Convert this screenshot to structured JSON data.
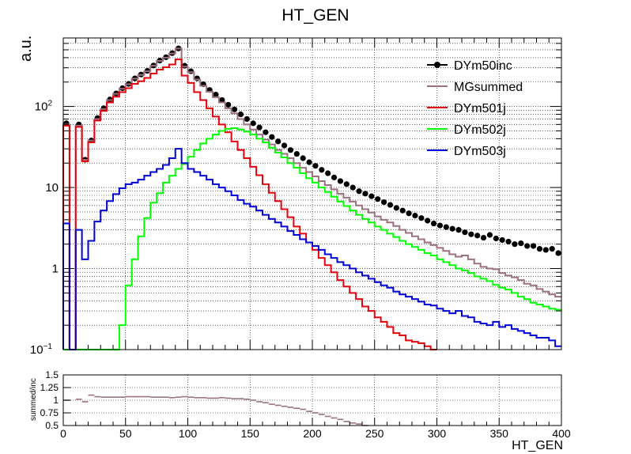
{
  "chart_data": [
    {
      "type": "line",
      "title": "HT_GEN",
      "ylabel": "a.u.",
      "xlabel": "",
      "yscale": "log",
      "xlim": [
        0,
        400
      ],
      "ylim": [
        0.1,
        700
      ],
      "grid": true,
      "legend_position": "top-right",
      "x_ticks": [
        "0",
        "50",
        "100",
        "150",
        "200",
        "250",
        "300",
        "350",
        "400"
      ],
      "y_ticks": [
        {
          "label": "10",
          "sup": "−1",
          "value": 0.1
        },
        {
          "label": "1",
          "value": 1
        },
        {
          "label": "10",
          "value": 10
        },
        {
          "label": "10",
          "sup": "2",
          "value": 100
        }
      ],
      "bin_width": 5,
      "series": [
        {
          "name": "DYm50inc",
          "style": "markers",
          "color": "#000000",
          "x": [
            2.5,
            12.5,
            17.5,
            22.5,
            27.5,
            32.5,
            37.5,
            42.5,
            47.5,
            52.5,
            57.5,
            62.5,
            67.5,
            72.5,
            77.5,
            82.5,
            87.5,
            92.5,
            97.5,
            102.5,
            107.5,
            112.5,
            117.5,
            122.5,
            127.5,
            132.5,
            137.5,
            142.5,
            147.5,
            152.5,
            157.5,
            162.5,
            167.5,
            172.5,
            177.5,
            182.5,
            187.5,
            192.5,
            197.5,
            202.5,
            207.5,
            212.5,
            217.5,
            222.5,
            227.5,
            232.5,
            237.5,
            242.5,
            247.5,
            252.5,
            257.5,
            262.5,
            267.5,
            272.5,
            277.5,
            282.5,
            287.5,
            292.5,
            297.5,
            302.5,
            307.5,
            312.5,
            317.5,
            322.5,
            327.5,
            332.5,
            337.5,
            342.5,
            347.5,
            352.5,
            357.5,
            362.5,
            367.5,
            372.5,
            377.5,
            382.5,
            387.5,
            392.5,
            397.5
          ],
          "values": [
            62,
            60,
            22,
            38,
            72,
            95,
            122,
            145,
            168,
            190,
            222,
            248,
            275,
            320,
            368,
            405,
            455,
            520,
            318,
            272,
            222,
            188,
            160,
            140,
            120,
            105,
            92,
            80,
            70,
            62,
            55,
            48,
            42,
            37,
            33,
            29,
            26,
            23,
            20.5,
            18.5,
            16.5,
            15,
            13.3,
            12,
            11,
            10,
            9,
            8.4,
            7.8,
            7.2,
            6.6,
            6.1,
            5.6,
            5.2,
            4.8,
            4.5,
            4.2,
            3.9,
            3.6,
            3.4,
            3.25,
            3.1,
            3.0,
            2.8,
            2.65,
            2.55,
            2.4,
            2.6,
            2.35,
            2.25,
            2.15,
            2.0,
            2.05,
            1.9,
            1.9,
            1.75,
            1.7,
            1.75,
            1.55
          ]
        },
        {
          "name": "MGsummed",
          "style": "step",
          "color": "#9b7080",
          "edges": [
            0,
            5,
            10,
            15,
            20,
            25,
            30,
            35,
            40,
            45,
            50,
            55,
            60,
            65,
            70,
            75,
            80,
            85,
            90,
            95,
            100,
            105,
            110,
            115,
            120,
            125,
            130,
            135,
            140,
            145,
            150,
            155,
            160,
            165,
            170,
            175,
            180,
            185,
            190,
            195,
            200,
            205,
            210,
            215,
            220,
            225,
            230,
            235,
            240,
            245,
            250,
            255,
            260,
            265,
            270,
            275,
            280,
            285,
            290,
            295,
            300,
            305,
            310,
            315,
            320,
            325,
            330,
            335,
            340,
            345,
            350,
            355,
            360,
            365,
            370,
            375,
            380,
            385,
            390,
            395,
            400
          ],
          "values": [
            60,
            0.1,
            58,
            22,
            38,
            70,
            93,
            120,
            143,
            165,
            188,
            220,
            245,
            272,
            318,
            365,
            400,
            450,
            518,
            310,
            265,
            215,
            180,
            152,
            130,
            112,
            95,
            82,
            70,
            60,
            52,
            45,
            39,
            34,
            29,
            26,
            23,
            20,
            17.5,
            15.5,
            13.7,
            12,
            10.7,
            9.5,
            8.4,
            7.5,
            6.7,
            6.0,
            5.4,
            4.9,
            4.4,
            4.0,
            3.7,
            3.35,
            3.0,
            2.75,
            2.5,
            2.3,
            2.1,
            1.95,
            1.8,
            1.65,
            1.5,
            1.4,
            1.45,
            1.3,
            1.15,
            1.05,
            1.0,
            0.98,
            0.88,
            0.82,
            0.78,
            0.72,
            0.65,
            0.62,
            0.56,
            0.52,
            0.48,
            0.45
          ]
        },
        {
          "name": "DYm501j",
          "style": "step",
          "color": "#e8000b",
          "edges": [
            0,
            5,
            10,
            15,
            20,
            25,
            30,
            35,
            40,
            45,
            50,
            55,
            60,
            65,
            70,
            75,
            80,
            85,
            90,
            95,
            100,
            105,
            110,
            115,
            120,
            125,
            130,
            135,
            140,
            145,
            150,
            155,
            160,
            165,
            170,
            175,
            180,
            185,
            190,
            195,
            200,
            205,
            210,
            215,
            220,
            225,
            230,
            235,
            240,
            245,
            250,
            255,
            260,
            265,
            270,
            275,
            280,
            285,
            290,
            295,
            300
          ],
          "values": [
            58,
            0.1,
            56,
            21,
            36,
            67,
            88,
            112,
            132,
            150,
            168,
            190,
            205,
            225,
            255,
            285,
            305,
            330,
            380,
            240,
            195,
            150,
            120,
            95,
            75,
            60,
            48,
            37,
            29,
            23,
            18,
            14.2,
            11,
            8.6,
            6.8,
            5.4,
            4.3,
            3.3,
            2.7,
            2.1,
            1.7,
            1.35,
            1.1,
            0.9,
            0.72,
            0.6,
            0.5,
            0.42,
            0.34,
            0.3,
            0.25,
            0.22,
            0.19,
            0.16,
            0.15,
            0.13,
            0.125,
            0.12,
            0.11,
            0.1,
            0.1
          ]
        },
        {
          "name": "DYm502j",
          "style": "step",
          "color": "#00ff00",
          "edges": [
            0,
            5,
            10,
            15,
            20,
            25,
            30,
            35,
            40,
            45,
            50,
            55,
            60,
            65,
            70,
            75,
            80,
            85,
            90,
            95,
            100,
            105,
            110,
            115,
            120,
            125,
            130,
            135,
            140,
            145,
            150,
            155,
            160,
            165,
            170,
            175,
            180,
            185,
            190,
            195,
            200,
            205,
            210,
            215,
            220,
            225,
            230,
            235,
            240,
            245,
            250,
            255,
            260,
            265,
            270,
            275,
            280,
            285,
            290,
            295,
            300,
            305,
            310,
            315,
            320,
            325,
            330,
            335,
            340,
            345,
            350,
            355,
            360,
            365,
            370,
            375,
            380,
            385,
            390,
            395,
            400
          ],
          "values": [
            0.1,
            0.1,
            0.1,
            0.1,
            0.1,
            0.1,
            0.1,
            0.1,
            0.1,
            0.2,
            0.62,
            1.3,
            2.5,
            4.2,
            6.5,
            8.5,
            11.5,
            14,
            17,
            19.5,
            24,
            29,
            35,
            40,
            45,
            50,
            53,
            54,
            52,
            49,
            45,
            40,
            36,
            31,
            27,
            23.5,
            20,
            17.5,
            15,
            13,
            11.5,
            10,
            8.8,
            7.7,
            6.7,
            5.9,
            5.2,
            4.6,
            4.1,
            3.7,
            3.3,
            3.0,
            2.7,
            2.45,
            2.2,
            2.0,
            1.85,
            1.7,
            1.55,
            1.45,
            1.3,
            1.2,
            1.1,
            1.0,
            0.95,
            0.88,
            0.8,
            0.75,
            0.7,
            0.63,
            0.58,
            0.55,
            0.5,
            0.45,
            0.42,
            0.38,
            0.36,
            0.34,
            0.32,
            0.31
          ]
        },
        {
          "name": "DYm503j",
          "style": "step",
          "color": "#0000d6",
          "edges": [
            0,
            5,
            10,
            15,
            20,
            25,
            30,
            35,
            40,
            45,
            50,
            55,
            60,
            65,
            70,
            75,
            80,
            85,
            90,
            95,
            100,
            105,
            110,
            115,
            120,
            125,
            130,
            135,
            140,
            145,
            150,
            155,
            160,
            165,
            170,
            175,
            180,
            185,
            190,
            195,
            200,
            205,
            210,
            215,
            220,
            225,
            230,
            235,
            240,
            245,
            250,
            255,
            260,
            265,
            270,
            275,
            280,
            285,
            290,
            295,
            300,
            305,
            310,
            315,
            320,
            325,
            330,
            335,
            340,
            345,
            350,
            355,
            360,
            365,
            370,
            375,
            380,
            385,
            390,
            395,
            400
          ],
          "values": [
            3.6,
            0.1,
            3.0,
            1.3,
            2.2,
            3.8,
            5.2,
            6.8,
            8.3,
            9.8,
            11,
            11.5,
            12.5,
            14,
            15.5,
            17,
            19,
            23,
            30,
            20,
            17,
            15.5,
            14,
            12.5,
            11,
            10,
            9,
            8,
            7,
            6.3,
            5.8,
            5.2,
            4.6,
            4.1,
            3.7,
            3.3,
            2.9,
            2.6,
            2.3,
            2.1,
            1.9,
            1.7,
            1.5,
            1.35,
            1.2,
            1.1,
            1.0,
            0.9,
            0.82,
            0.75,
            0.68,
            0.62,
            0.58,
            0.52,
            0.48,
            0.45,
            0.42,
            0.39,
            0.36,
            0.35,
            0.32,
            0.3,
            0.28,
            0.3,
            0.26,
            0.25,
            0.22,
            0.21,
            0.2,
            0.22,
            0.19,
            0.2,
            0.18,
            0.17,
            0.16,
            0.15,
            0.14,
            0.14,
            0.13,
            0.11
          ]
        }
      ]
    },
    {
      "type": "scatter",
      "ylabel": "summed/inc",
      "xlabel": "HT_GEN",
      "xlim": [
        0,
        400
      ],
      "ylim": [
        0.5,
        1.5
      ],
      "x_ticks": [
        "0",
        "50",
        "100",
        "150",
        "200",
        "250",
        "300",
        "350",
        "400"
      ],
      "y_ticks": [
        "0.5",
        "0.75",
        "1",
        "1.25",
        "1.5"
      ],
      "series": [
        {
          "name": "",
          "color": "#9b7080",
          "x": [
            2.5,
            12.5,
            17.5,
            22.5,
            27.5,
            32.5,
            37.5,
            42.5,
            47.5,
            52.5,
            57.5,
            62.5,
            67.5,
            72.5,
            77.5,
            82.5,
            87.5,
            92.5,
            97.5,
            102.5,
            107.5,
            112.5,
            117.5,
            122.5,
            127.5,
            132.5,
            137.5,
            142.5,
            147.5,
            152.5,
            157.5,
            162.5,
            167.5,
            172.5,
            177.5,
            182.5,
            187.5,
            192.5,
            197.5,
            202.5,
            207.5,
            212.5,
            217.5,
            222.5,
            227.5,
            232.5,
            237.5,
            242.5
          ],
          "values": [
            1.0,
            1.02,
            0.97,
            1.1,
            1.07,
            1.06,
            1.06,
            1.06,
            1.06,
            1.07,
            1.07,
            1.07,
            1.07,
            1.06,
            1.06,
            1.06,
            1.05,
            1.06,
            1.07,
            1.06,
            1.05,
            1.05,
            1.04,
            1.04,
            1.05,
            1.04,
            1.03,
            1.03,
            1.02,
            1.0,
            0.97,
            0.95,
            0.92,
            0.9,
            0.88,
            0.86,
            0.84,
            0.82,
            0.78,
            0.75,
            0.72,
            0.68,
            0.65,
            0.62,
            0.58,
            0.55,
            0.53,
            0.5
          ]
        }
      ]
    }
  ]
}
